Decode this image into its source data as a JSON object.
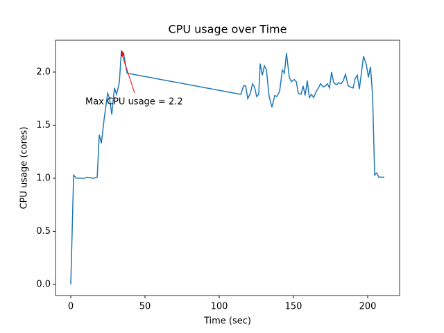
{
  "chart_data": {
    "type": "line",
    "title": "CPU usage over Time",
    "xlabel": "Time (sec)",
    "ylabel": "CPU usage (cores)",
    "annotation": "Max CPU usage = 2.2",
    "color": "#1f77b4",
    "annotation_color": "#ff0000",
    "x": [
      0,
      1.9,
      3.7,
      9.3,
      11.2,
      15,
      17.8,
      19.2,
      20.6,
      22.4,
      24.8,
      26.2,
      27.6,
      29.4,
      30.8,
      32.7,
      34.1,
      35.5,
      37.9,
      114.5,
      116.4,
      117.8,
      119.2,
      121.0,
      122.4,
      123.8,
      125.2,
      126.6,
      127.6,
      129.0,
      130.4,
      131.8,
      133.6,
      135.5,
      137.4,
      138.8,
      140.7,
      142.5,
      143.9,
      145.3,
      147.2,
      148.6,
      150.5,
      151.9,
      153.3,
      155.1,
      156.5,
      157.9,
      159.3,
      160.7,
      162.1,
      163.6,
      165.4,
      166.8,
      168.2,
      170.1,
      171.5,
      172.9,
      174.3,
      175.7,
      177.1,
      179.0,
      180.4,
      182.2,
      183.6,
      185.0,
      186.9,
      188.3,
      190.2,
      191.6,
      193.0,
      194.4,
      197.2,
      199.1,
      200.5,
      201.9,
      203.3,
      204.7,
      206.1,
      207.5,
      211.2
    ],
    "values": [
      0,
      1.03,
      1.0,
      1.0,
      1.01,
      1.0,
      1.01,
      1.41,
      1.33,
      1.55,
      1.8,
      1.75,
      1.6,
      1.85,
      1.79,
      1.9,
      2.2,
      2.18,
      1.99,
      1.79,
      1.87,
      1.87,
      1.75,
      1.8,
      1.89,
      1.86,
      1.77,
      1.79,
      2.08,
      1.97,
      2.06,
      2.02,
      1.77,
      1.67,
      1.78,
      1.77,
      1.82,
      2.02,
      1.99,
      2.18,
      1.95,
      1.91,
      1.93,
      1.91,
      1.8,
      1.79,
      1.87,
      1.78,
      1.92,
      1.76,
      1.79,
      1.76,
      1.82,
      1.85,
      1.89,
      1.86,
      1.87,
      1.89,
      1.85,
      2.0,
      1.9,
      1.88,
      1.9,
      1.89,
      1.92,
      1.98,
      1.87,
      1.86,
      1.85,
      1.94,
      1.97,
      1.84,
      2.15,
      2.07,
      1.95,
      2.05,
      1.78,
      1.03,
      1.05,
      1.01,
      1.01
    ],
    "xlim": [
      -10.3,
      221.5
    ],
    "ylim": [
      -0.105,
      2.3
    ],
    "xticks": [
      0,
      50,
      100,
      150,
      200
    ],
    "yticks": [
      {
        "value": 0,
        "label": "0.0"
      },
      {
        "value": 0.5,
        "label": "0.5"
      },
      {
        "value": 1,
        "label": "1.0"
      },
      {
        "value": 1.5,
        "label": "1.5"
      },
      {
        "value": 2,
        "label": "2.0"
      }
    ]
  }
}
